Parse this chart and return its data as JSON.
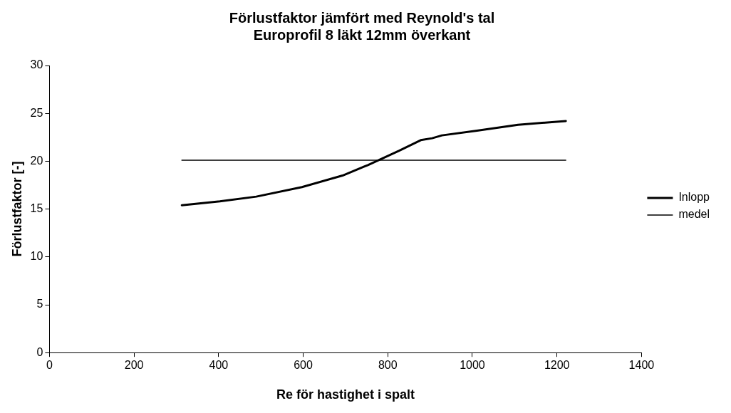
{
  "chart_data": {
    "type": "line",
    "title": [
      "Förlustfaktor jämfört med Reynold's tal",
      "Europrofil 8 läkt 12mm överkant"
    ],
    "xlabel": "Re för hastighet i spalt",
    "ylabel": "Förlustfaktor [-]",
    "xlim": [
      0,
      1400
    ],
    "xticks": [
      0,
      200,
      400,
      600,
      800,
      1000,
      1200,
      1400
    ],
    "ylim": [
      0,
      30
    ],
    "yticks": [
      0,
      5,
      10,
      15,
      20,
      25,
      30
    ],
    "grid": false,
    "legend": "right",
    "marker": "none",
    "series": [
      {
        "name": "Inlopp",
        "color": "#000000",
        "x": [
          313,
          403,
          489,
          597,
          693,
          753,
          827,
          878,
          905,
          928,
          1011,
          1108,
          1221
        ],
        "values": [
          15.4,
          15.8,
          16.3,
          17.3,
          18.5,
          19.6,
          21.1,
          22.2,
          22.4,
          22.7,
          23.2,
          23.8,
          24.2
        ]
      },
      {
        "name": "medel",
        "color": "#000000",
        "x": [
          313,
          1221
        ],
        "values": [
          20.1,
          20.1
        ]
      }
    ]
  }
}
